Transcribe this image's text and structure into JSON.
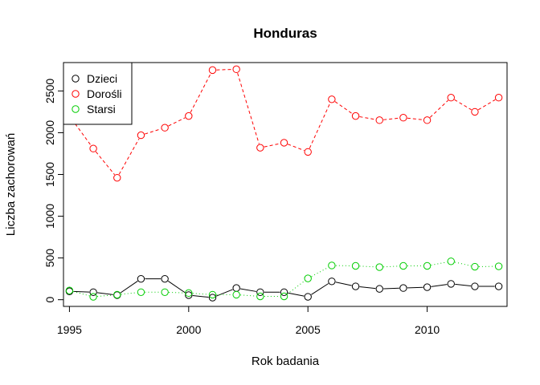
{
  "chart_data": {
    "type": "line",
    "title": "Honduras",
    "xlabel": "Rok badania",
    "ylabel": "Liczba zachorowań",
    "xlim": [
      1994.75,
      2013.35
    ],
    "ylim": [
      -80,
      2840
    ],
    "xticks": [
      1995,
      2000,
      2005,
      2010
    ],
    "yticks": [
      0,
      500,
      1000,
      1500,
      2000,
      2500
    ],
    "x": [
      1995,
      1996,
      1997,
      1998,
      1999,
      2000,
      2001,
      2002,
      2003,
      2004,
      2005,
      2006,
      2007,
      2008,
      2009,
      2010,
      2011,
      2012,
      2013
    ],
    "legend_position": "top-left",
    "series": [
      {
        "name": "Dzieci",
        "color": "#000000",
        "line_style": "solid",
        "values": [
          100,
          90,
          55,
          250,
          250,
          55,
          25,
          140,
          90,
          90,
          35,
          220,
          160,
          130,
          140,
          150,
          190,
          160,
          160
        ]
      },
      {
        "name": "Dorośli",
        "color": "#ff0000",
        "line_style": "dashed",
        "values": [
          2200,
          1810,
          1460,
          1970,
          2060,
          2200,
          2750,
          2760,
          1820,
          1880,
          1770,
          2400,
          2200,
          2150,
          2180,
          2150,
          2420,
          2250,
          2420
        ]
      },
      {
        "name": "Starsi",
        "color": "#00cd00",
        "line_style": "dotted",
        "values": [
          110,
          35,
          60,
          90,
          90,
          80,
          60,
          60,
          40,
          40,
          255,
          410,
          405,
          390,
          405,
          405,
          460,
          395,
          400
        ]
      }
    ]
  }
}
